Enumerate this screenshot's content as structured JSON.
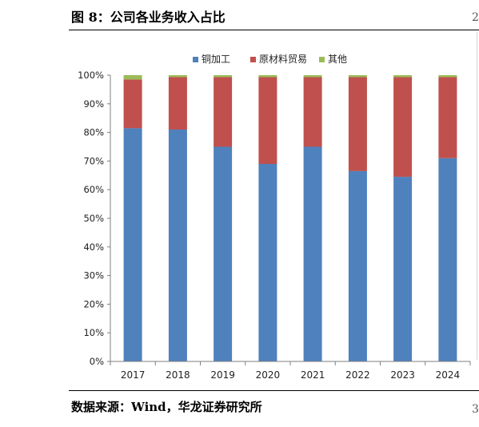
{
  "figure": {
    "title": "图 8：公司各业务收入占比",
    "source": "数据来源：Wind，华龙证券研究所",
    "edge_top_char": "2",
    "edge_bottom_char": "3"
  },
  "colors": {
    "copper": "#4F81BD",
    "trade": "#C0504D",
    "other": "#9BBB59"
  },
  "chart_data": {
    "type": "bar",
    "stacked": true,
    "categories": [
      "2017",
      "2018",
      "2019",
      "2020",
      "2021",
      "2022",
      "2023",
      "2024"
    ],
    "series": [
      {
        "name": "铜加工",
        "color": "#4F81BD",
        "values": [
          81.5,
          81.0,
          75.0,
          69.0,
          75.0,
          66.5,
          64.5,
          71.0
        ]
      },
      {
        "name": "原材料贸易",
        "color": "#C0504D",
        "values": [
          17.0,
          18.3,
          24.3,
          30.3,
          24.3,
          32.8,
          34.8,
          28.3
        ]
      },
      {
        "name": "其他",
        "color": "#9BBB59",
        "values": [
          1.5,
          0.7,
          0.7,
          0.7,
          0.7,
          0.7,
          0.7,
          0.7
        ]
      }
    ],
    "y_ticks": [
      "0%",
      "10%",
      "20%",
      "30%",
      "40%",
      "50%",
      "60%",
      "70%",
      "80%",
      "90%",
      "100%"
    ],
    "ylim": [
      0,
      100
    ],
    "grid": false,
    "legend": "top-center"
  }
}
